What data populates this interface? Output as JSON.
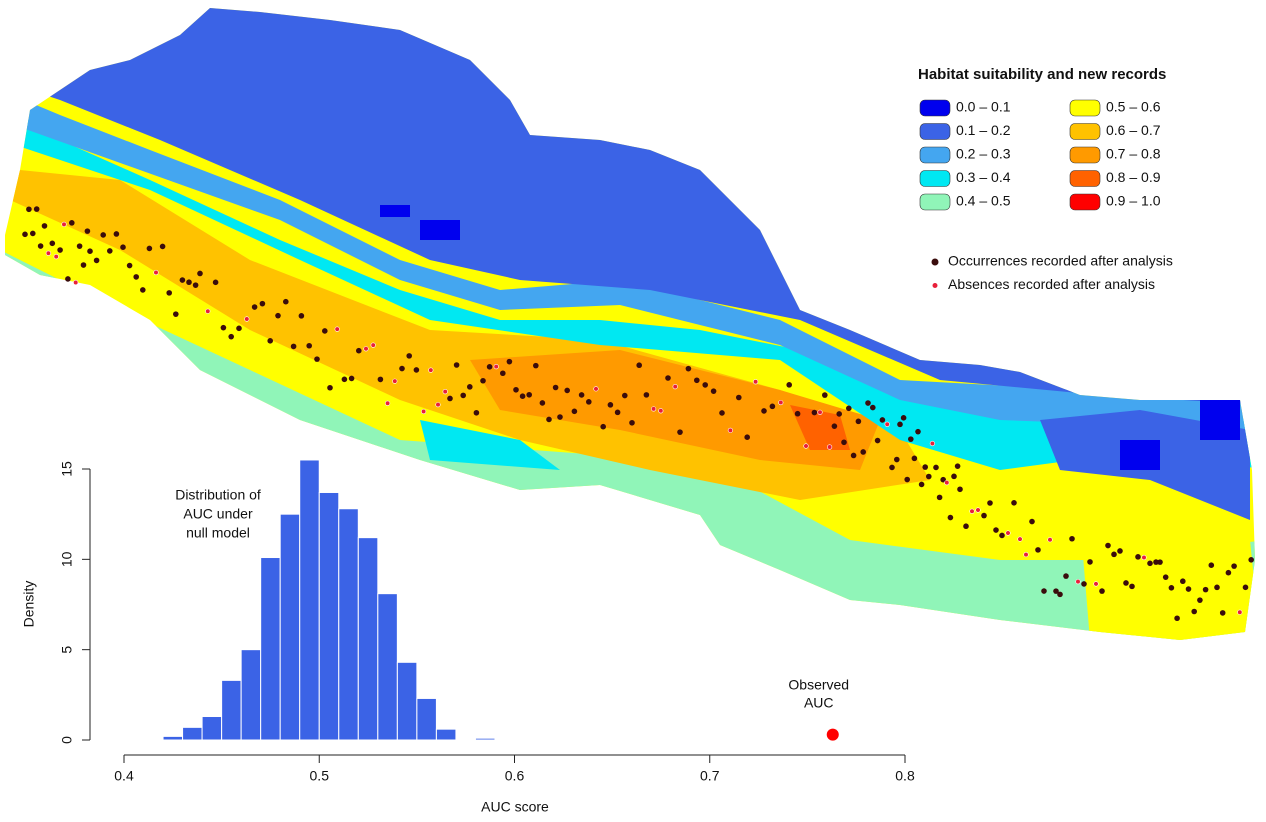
{
  "map": {
    "legend_title": "Habitat suitability and new records",
    "legend": [
      {
        "label": "0.0 – 0.1",
        "color": "#0000ee"
      },
      {
        "label": "0.1 – 0.2",
        "color": "#3b63e6"
      },
      {
        "label": "0.2 – 0.3",
        "color": "#44a6f0"
      },
      {
        "label": "0.3 – 0.4",
        "color": "#00e8f2"
      },
      {
        "label": "0.4 – 0.5",
        "color": "#90f5b8"
      },
      {
        "label": "0.5 – 0.6",
        "color": "#ffff00"
      },
      {
        "label": "0.6 – 0.7",
        "color": "#ffc200"
      },
      {
        "label": "0.7 – 0.8",
        "color": "#ff9a00"
      },
      {
        "label": "0.8 – 0.9",
        "color": "#ff6200"
      },
      {
        "label": "0.9 – 1.0",
        "color": "#ff0000"
      }
    ],
    "points": [
      {
        "label": "Occurrences recorded after analysis",
        "color": "#3a0c0c"
      },
      {
        "label": "Absences recorded after analysis",
        "color": "#e8203a"
      }
    ]
  },
  "chart_data": {
    "type": "histogram",
    "bins": [
      0.41,
      0.42,
      0.43,
      0.44,
      0.45,
      0.46,
      0.47,
      0.48,
      0.49,
      0.5,
      0.51,
      0.52,
      0.53,
      0.54,
      0.55,
      0.56,
      0.57,
      0.58,
      0.59
    ],
    "values": [
      0.05,
      0.2,
      0.7,
      1.3,
      3.3,
      5.0,
      10.1,
      12.5,
      15.5,
      13.7,
      12.8,
      11.2,
      8.1,
      4.3,
      2.3,
      0.6,
      0,
      0.1
    ],
    "color": "#3b63e6",
    "xlim": [
      0.4,
      0.8
    ],
    "xticks": [
      0.4,
      0.5,
      0.6,
      0.7,
      0.8
    ],
    "ylim": [
      0,
      15
    ],
    "yticks": [
      0,
      5,
      10,
      15
    ],
    "xlabel": "AUC score",
    "ylabel": "Density",
    "annotation": [
      "Distribution of",
      "AUC under",
      "null model"
    ],
    "observed": {
      "x": 0.763,
      "y": 0.3,
      "color": "#ff0000",
      "label": [
        "Observed",
        "AUC"
      ]
    }
  }
}
